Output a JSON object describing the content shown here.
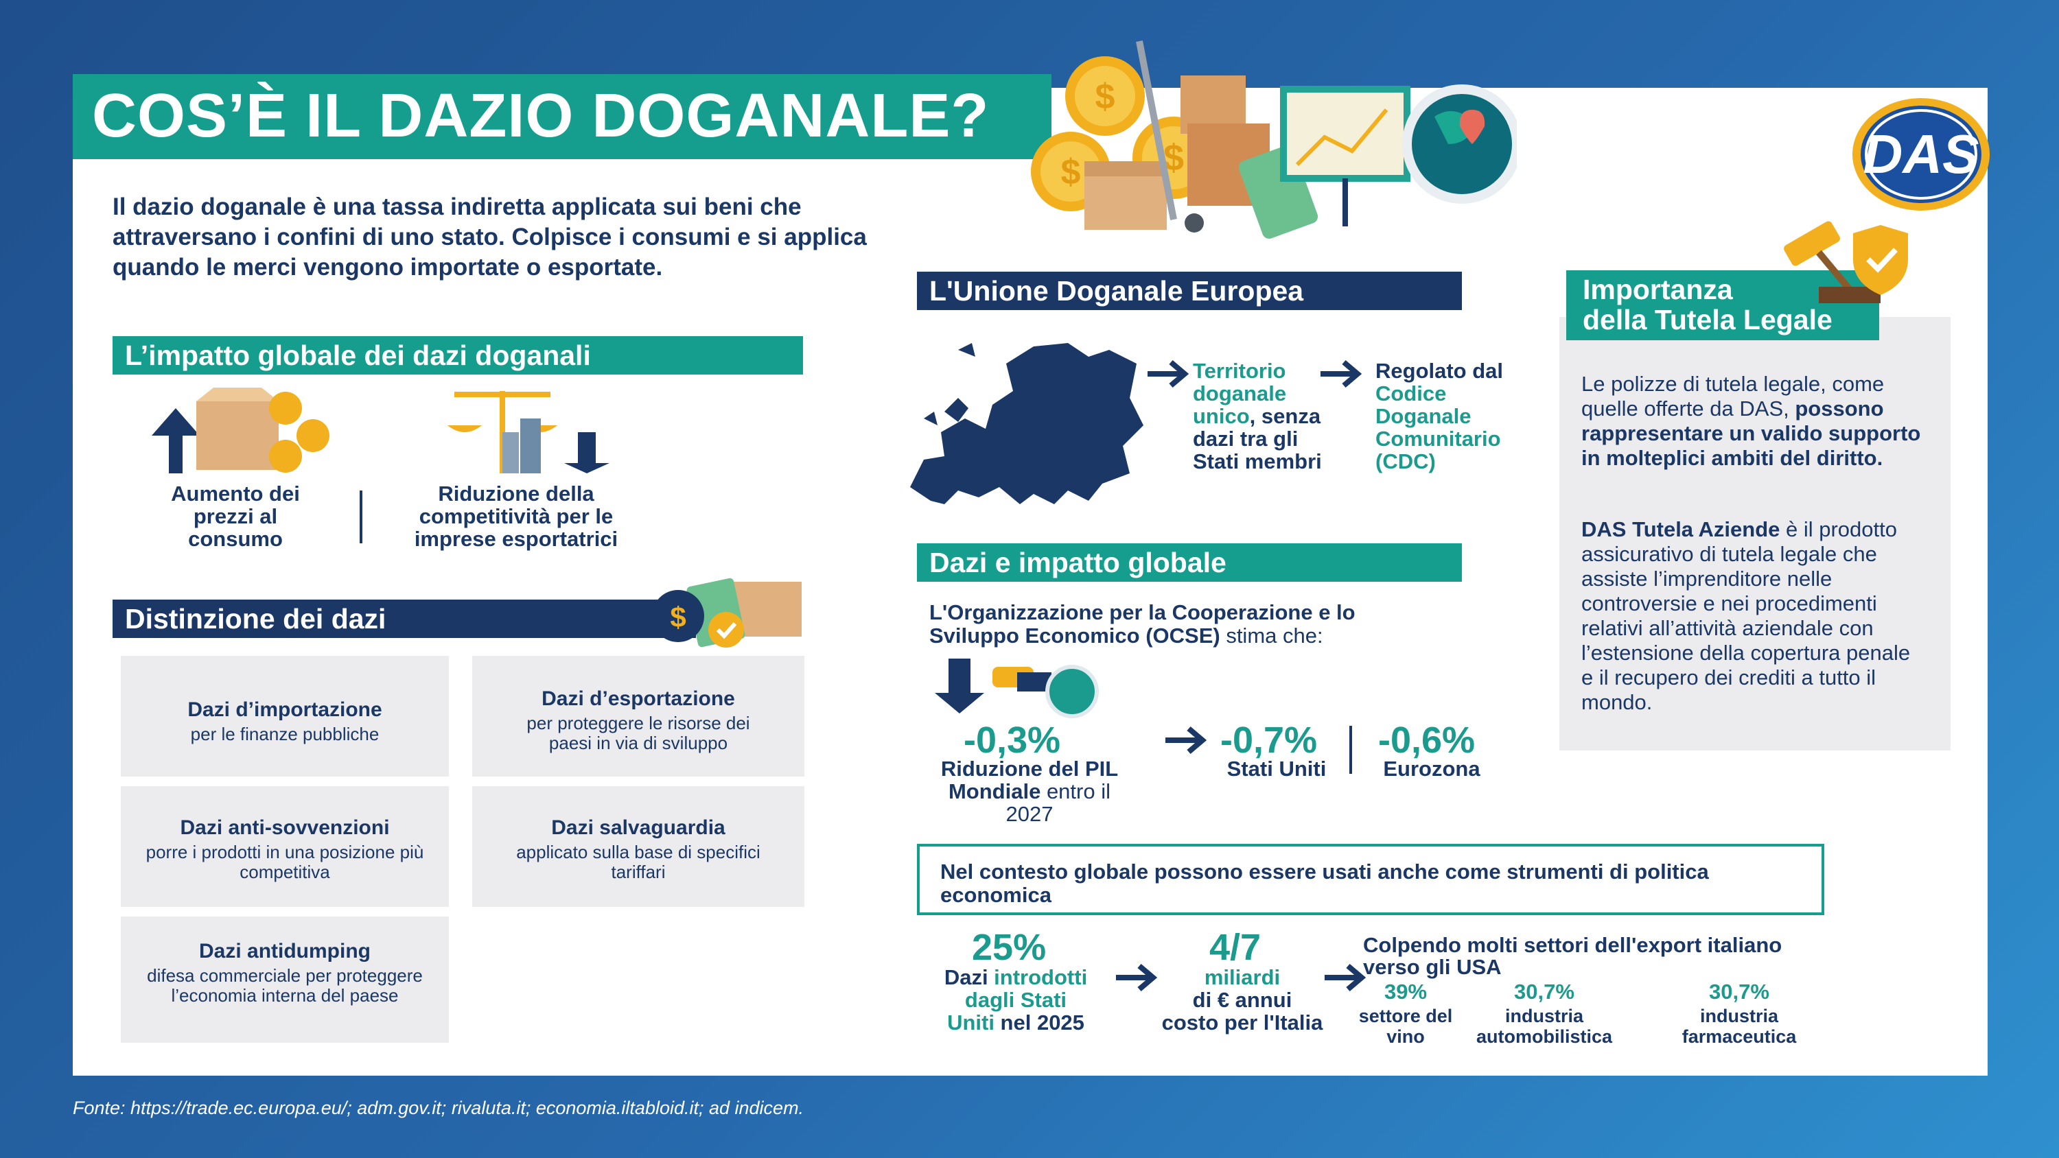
{
  "title": "COS’È IL DAZIO DOGANALE?",
  "logo": "DAS",
  "intro": "Il dazio doganale è una tassa indiretta applicata sui beni che attraversano i confini di uno stato. Colpisce i consumi e si applica quando le merci vengono importate o esportate.",
  "impatto": {
    "heading": "L’impatto globale dei dazi doganali",
    "items": [
      {
        "label": "Aumento dei prezzi al consumo",
        "icon": "arrow-up-icon"
      },
      {
        "label": "Riduzione della competitività per le imprese esportatrici",
        "icon": "arrow-down-icon"
      }
    ]
  },
  "distinzione": {
    "heading": "Distinzione dei dazi",
    "items": [
      {
        "title": "Dazi d’importazione",
        "desc": "per le finanze pubbliche"
      },
      {
        "title": "Dazi d’esportazione",
        "desc": "per proteggere le risorse dei paesi in via di sviluppo"
      },
      {
        "title": "Dazi anti-sovvenzioni",
        "desc": "porre i prodotti in una posizione più competitiva"
      },
      {
        "title": "Dazi salvaguardia",
        "desc": "applicato sulla base di specifici tariffari"
      },
      {
        "title": "Dazi antidumping",
        "desc": "difesa commerciale per proteggere l’economia interna del paese"
      }
    ]
  },
  "unione": {
    "heading": "L'Unione Doganale Europea",
    "territorio_teal": "Territorio doganale unico",
    "territorio_rest": ", senza dazi tra gli Stati membri",
    "regolato_navy": "Regolato dal ",
    "regolato_teal": "Codice Doganale Comunitario (CDC)"
  },
  "impatto_globale": {
    "heading": "Dazi e impatto globale",
    "ocse_bold": "L'Organizzazione per la Cooperazione e lo Sviluppo Economico (OCSE)",
    "ocse_rest": " stima che:",
    "pil": {
      "value": "-0,3%",
      "label_bold": "Riduzione del PIL Mondiale",
      "label_rest": " entro il 2027"
    },
    "usa": {
      "value": "-0,7%",
      "label": "Stati Uniti"
    },
    "euro": {
      "value": "-0,6%",
      "label": "Eurozona"
    }
  },
  "politica": "Nel contesto globale possono essere usati anche come strumenti di politica economica",
  "stats": {
    "dazi": {
      "value": "25%",
      "l1_navy": "Dazi ",
      "l1_teal": "introdotti",
      "l2_teal": "dagli Stati",
      "l3_teal": "Uniti",
      "l3_navy": " nel 2025"
    },
    "costo": {
      "value": "4/7",
      "l1": "miliardi",
      "l2": "di € annui",
      "l3": "costo per l'Italia"
    },
    "export_title": "Colpendo molti settori dell'export italiano verso gli USA",
    "settori": [
      {
        "value": "39%",
        "label": "settore del vino"
      },
      {
        "value": "30,7%",
        "label": "industria automobilistica"
      },
      {
        "value": "30,7%",
        "label": "industria farmaceutica"
      }
    ]
  },
  "tutela": {
    "heading_l1": "Importanza",
    "heading_l2": "della Tutela Legale",
    "p1_plain": "Le polizze di tutela legale, come quelle offerte da DAS, ",
    "p1_bold": "possono rappresentare un valido supporto in molteplici ambiti del diritto.",
    "p2_bold": "DAS Tutela Aziende",
    "p2_plain": " è il prodotto assicurativo di tutela legale che assiste l’imprenditore nelle controversie e nei procedimenti relativi all’attività aziendale con l’estensione della copertura penale e il recupero dei crediti a tutto il mondo."
  },
  "fonte": "Fonte: https://trade.ec.europa.eu/; adm.gov.it; rivaluta.it; economia.iltabloid.it; ad indicem.",
  "colors": {
    "teal": "#159d8e",
    "navy": "#1b3765",
    "gold": "#f2b01e",
    "grey": "#ececee"
  }
}
